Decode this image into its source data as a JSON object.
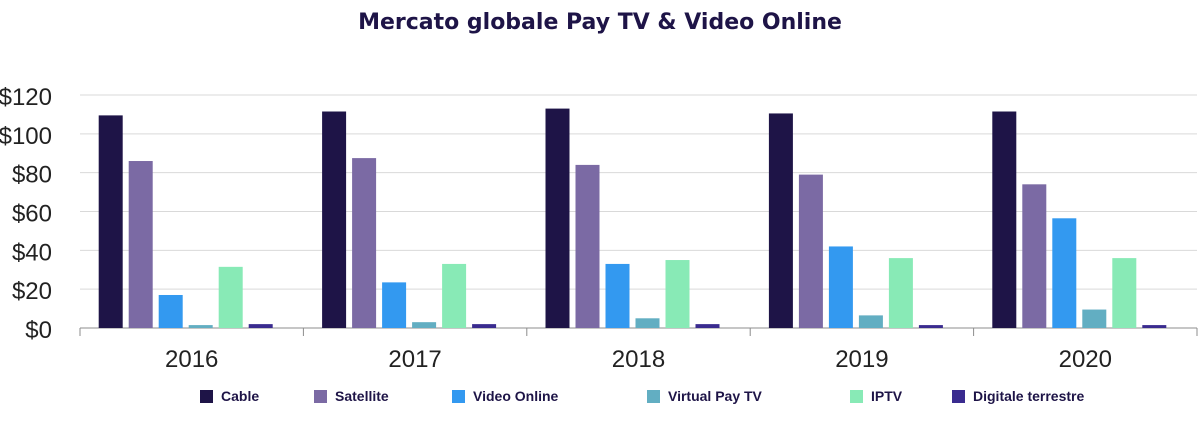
{
  "chart_data": {
    "type": "bar",
    "title": "Mercato globale Pay TV & Video Online",
    "xlabel": "",
    "ylabel": "",
    "categories": [
      "2016",
      "2017",
      "2018",
      "2019",
      "2020"
    ],
    "y_ticks": [
      "$0",
      "$20",
      "$40",
      "$60",
      "$80",
      "$100",
      "$120"
    ],
    "ylim": [
      0,
      120
    ],
    "grid": true,
    "legend_position": "bottom",
    "series": [
      {
        "name": "Cable",
        "color": "#1e1447",
        "values": [
          109.5,
          111.5,
          113,
          110.5,
          111.5
        ]
      },
      {
        "name": "Satellite",
        "color": "#7b6aa4",
        "values": [
          86,
          87.5,
          84,
          79,
          74
        ]
      },
      {
        "name": "Video Online",
        "color": "#3399f0",
        "values": [
          17,
          23.5,
          33,
          42,
          56.5
        ]
      },
      {
        "name": "Virtual Pay TV",
        "color": "#62aec2",
        "values": [
          1.5,
          3,
          5,
          6.5,
          9.5
        ]
      },
      {
        "name": "IPTV",
        "color": "#88eab6",
        "values": [
          31.5,
          33,
          35,
          36,
          36
        ]
      },
      {
        "name": "Digitale terrestre",
        "color": "#3a2b8f",
        "values": [
          2,
          2,
          2,
          1.5,
          1.5
        ]
      }
    ]
  }
}
